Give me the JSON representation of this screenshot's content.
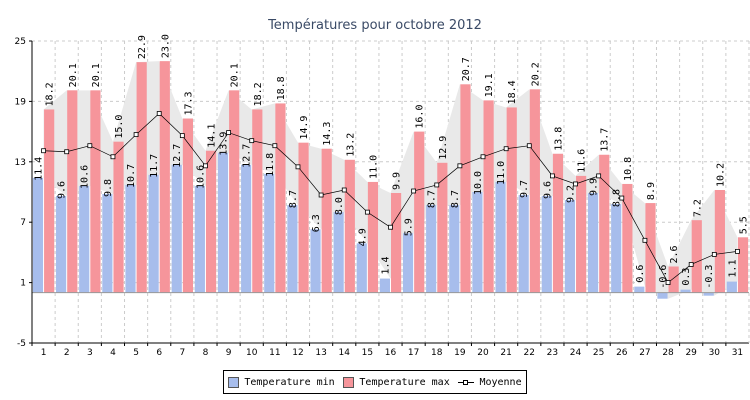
{
  "chart_data": {
    "type": "bar",
    "title": "Températures pour octobre 2012",
    "categories": [
      "1",
      "2",
      "3",
      "4",
      "5",
      "6",
      "7",
      "8",
      "9",
      "10",
      "11",
      "12",
      "13",
      "14",
      "15",
      "16",
      "17",
      "18",
      "19",
      "20",
      "21",
      "22",
      "23",
      "24",
      "25",
      "26",
      "27",
      "28",
      "29",
      "30",
      "31"
    ],
    "series": [
      {
        "name": "Temperature min",
        "kind": "bar",
        "color": "#a7bdec",
        "values": [
          11.4,
          9.6,
          10.6,
          9.8,
          10.7,
          11.7,
          12.7,
          10.6,
          13.9,
          12.7,
          11.8,
          8.7,
          6.3,
          8.0,
          4.9,
          1.4,
          5.9,
          8.7,
          8.7,
          10.0,
          11.0,
          9.7,
          9.6,
          9.2,
          9.9,
          8.8,
          0.6,
          -0.6,
          0.3,
          -0.3,
          1.1
        ]
      },
      {
        "name": "Temperature max",
        "kind": "bar",
        "color": "#f6959b",
        "values": [
          18.2,
          20.1,
          20.1,
          15.0,
          22.9,
          23.0,
          17.3,
          14.1,
          20.1,
          18.2,
          18.8,
          14.9,
          14.3,
          13.2,
          11.0,
          9.9,
          16.0,
          12.9,
          20.7,
          19.1,
          18.4,
          20.2,
          13.8,
          11.6,
          13.7,
          10.8,
          8.9,
          2.6,
          7.2,
          10.2,
          5.5
        ]
      },
      {
        "name": "Moyenne",
        "kind": "line",
        "color": "#000000",
        "values": [
          14.1,
          14.0,
          14.6,
          13.5,
          15.7,
          17.8,
          15.6,
          12.6,
          15.9,
          15.1,
          14.6,
          12.5,
          9.7,
          10.2,
          8.0,
          6.5,
          10.1,
          10.7,
          12.6,
          13.5,
          14.3,
          14.6,
          11.6,
          10.8,
          11.6,
          9.4,
          5.2,
          1.0,
          2.8,
          3.8,
          4.1
        ]
      }
    ],
    "ylim": [
      -5,
      25
    ],
    "yticks": [
      -5,
      1,
      7,
      13,
      19,
      25
    ],
    "baseline": 0,
    "grid": true,
    "legend_position": "bottom"
  },
  "legend": {
    "min_label": "Temperature min",
    "max_label": "Temperature max",
    "avg_label": "Moyenne"
  }
}
